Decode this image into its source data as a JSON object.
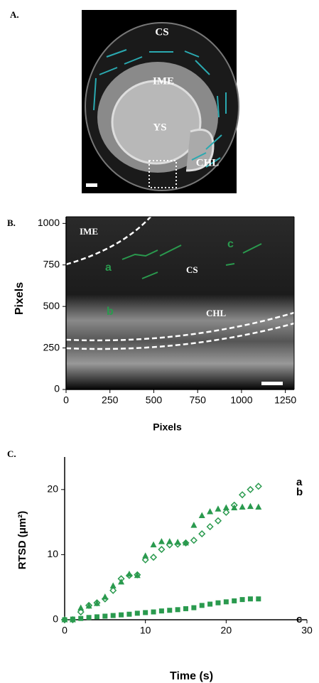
{
  "panel_a": {
    "panel_label": "A.",
    "labels": [
      "CS",
      "IME",
      "YS",
      "CHL"
    ]
  },
  "chart_data": [
    {
      "type": "image",
      "panel_label": "B.",
      "x_label": "Pixels",
      "y_label": "Pixels",
      "xlim": [
        0,
        1300
      ],
      "ylim": [
        0,
        1040
      ],
      "xticks": [
        0,
        250,
        500,
        750,
        1000,
        1250
      ],
      "yticks": [
        0,
        250,
        500,
        750,
        1000
      ],
      "annotations": [
        "IME",
        "CS",
        "CHL",
        "a",
        "b",
        "c"
      ]
    },
    {
      "type": "scatter",
      "panel_label": "C.",
      "x_label": "Time (s)",
      "y_label": "RTSD (μm²)",
      "xlim": [
        0,
        30
      ],
      "ylim": [
        0,
        25
      ],
      "xticks": [
        0,
        10,
        20,
        30
      ],
      "yticks": [
        0,
        10,
        20
      ],
      "x": [
        0,
        1,
        2,
        3,
        4,
        5,
        6,
        7,
        8,
        9,
        10,
        11,
        12,
        13,
        14,
        15,
        16,
        17,
        18,
        19,
        20,
        21,
        22,
        23,
        24
      ],
      "series": [
        {
          "name": "a",
          "color": "#2a9a4e",
          "marker": "open-diamond",
          "values": [
            0,
            0,
            1.2,
            2.2,
            2.6,
            3.2,
            4.5,
            6.3,
            6.8,
            6.9,
            9.2,
            9.6,
            10.8,
            11.5,
            11.6,
            11.8,
            12.2,
            13.2,
            14.3,
            15.2,
            16.5,
            17.6,
            19.2,
            20.0,
            20.5
          ]
        },
        {
          "name": "b",
          "color": "#2a9a4e",
          "marker": "triangle",
          "values": [
            0,
            0,
            1.8,
            2.1,
            2.5,
            3.5,
            5.2,
            5.8,
            7.0,
            6.8,
            9.8,
            11.5,
            12.0,
            12.0,
            11.9,
            11.8,
            14.5,
            16.0,
            16.6,
            17.0,
            17.2,
            17.2,
            17.3,
            17.4,
            17.3
          ]
        },
        {
          "name": "c",
          "color": "#2a9a4e",
          "marker": "square",
          "values": [
            0,
            0.1,
            0.2,
            0.35,
            0.45,
            0.55,
            0.65,
            0.75,
            0.85,
            1.0,
            1.1,
            1.2,
            1.35,
            1.45,
            1.55,
            1.7,
            1.85,
            2.2,
            2.4,
            2.6,
            2.75,
            2.9,
            3.1,
            3.2,
            3.2
          ]
        }
      ]
    }
  ]
}
